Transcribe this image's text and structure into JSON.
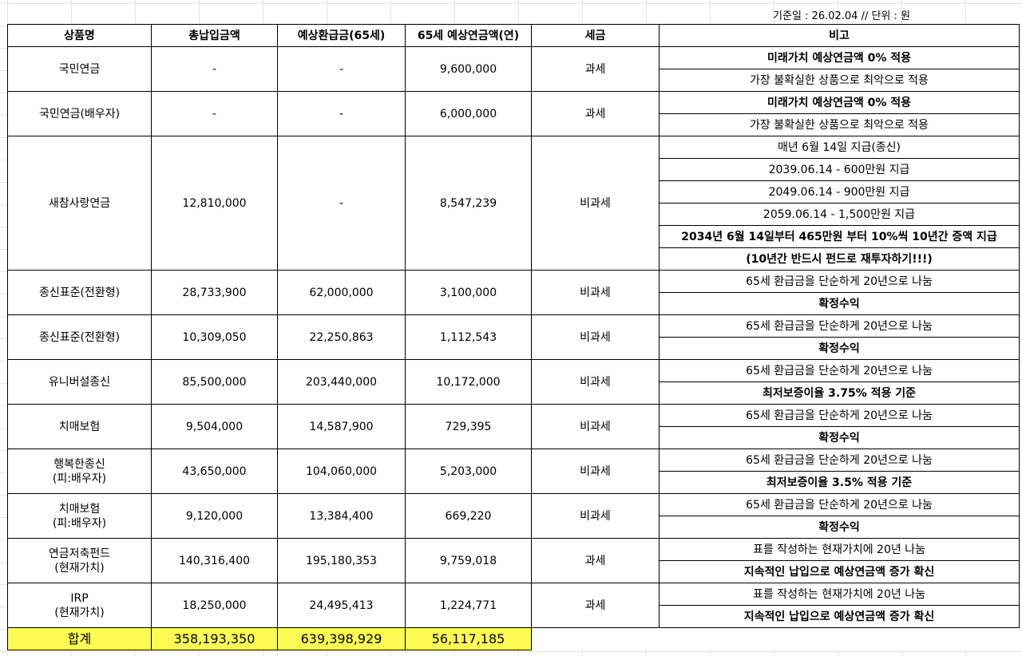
{
  "header": {
    "date_note": "기준일 : 26.02.04 // 단위 : 원"
  },
  "columns": [
    "상품명",
    "총납입금액",
    "예상환급금(65세)",
    "65세 예상연금액(연)",
    "세금",
    "비고"
  ],
  "rows": [
    {
      "name": [
        "국민연금"
      ],
      "paid": "-",
      "refund": "-",
      "annuity": "9,600,000",
      "tax": "과세",
      "notes": [
        {
          "text": "미래가치 예상연금액 0% 적용",
          "bold": true
        },
        {
          "text": "가장 불확실한 상품으로 최악으로 적용",
          "bold": false
        }
      ]
    },
    {
      "name": [
        "국민연금(배우자)"
      ],
      "paid": "-",
      "refund": "-",
      "annuity": "6,000,000",
      "tax": "과세",
      "notes": [
        {
          "text": "미래가치 예상연금액 0% 적용",
          "bold": true
        },
        {
          "text": "가장 불확실한 상품으로 최악으로 적용",
          "bold": false
        }
      ]
    },
    {
      "name": [
        "새참사랑연금"
      ],
      "paid": "12,810,000",
      "refund": "-",
      "annuity": "8,547,239",
      "tax": "비과세",
      "notes": [
        {
          "text": "매년 6월 14일 지급(종신)",
          "bold": false
        },
        {
          "text": "2039.06.14 - 600만원 지급",
          "bold": false
        },
        {
          "text": "2049.06.14 - 900만원 지급",
          "bold": false
        },
        {
          "text": "2059.06.14 - 1,500만원 지급",
          "bold": false
        },
        {
          "text": "2034년 6월 14일부터 465만원 부터 10%씩 10년간 증액 지급",
          "bold": true
        },
        {
          "text": "(10년간 반드시 펀드로 재투자하기!!!)",
          "bold": true
        }
      ]
    },
    {
      "name": [
        "종신표준(전환형)"
      ],
      "paid": "28,733,900",
      "refund": "62,000,000",
      "annuity": "3,100,000",
      "tax": "비과세",
      "notes": [
        {
          "text": "65세 환급금을 단순하게 20년으로 나눔",
          "bold": false
        },
        {
          "text": "확정수익",
          "bold": true
        }
      ]
    },
    {
      "name": [
        "종신표준(전환형)"
      ],
      "paid": "10,309,050",
      "refund": "22,250,863",
      "annuity": "1,112,543",
      "tax": "비과세",
      "notes": [
        {
          "text": "65세 환급금을 단순하게 20년으로 나눔",
          "bold": false
        },
        {
          "text": "확정수익",
          "bold": true
        }
      ]
    },
    {
      "name": [
        "유니버설종신"
      ],
      "paid": "85,500,000",
      "refund": "203,440,000",
      "annuity": "10,172,000",
      "tax": "비과세",
      "notes": [
        {
          "text": "65세 환급금을 단순하게 20년으로 나눔",
          "bold": false
        },
        {
          "text": "최저보증이율 3.75% 적용 기준",
          "bold": true
        }
      ]
    },
    {
      "name": [
        "치매보험"
      ],
      "paid": "9,504,000",
      "refund": "14,587,900",
      "annuity": "729,395",
      "tax": "비과세",
      "notes": [
        {
          "text": "65세 환급금을 단순하게 20년으로 나눔",
          "bold": false
        },
        {
          "text": "확정수익",
          "bold": true
        }
      ]
    },
    {
      "name": [
        "행복한종신",
        "(피:배우자)"
      ],
      "paid": "43,650,000",
      "refund": "104,060,000",
      "annuity": "5,203,000",
      "tax": "비과세",
      "notes": [
        {
          "text": "65세 환급금을 단순하게 20년으로 나눔",
          "bold": false
        },
        {
          "text": "최저보증이율 3.5% 적용 기준",
          "bold": true
        }
      ]
    },
    {
      "name": [
        "치매보험",
        "(피:배우자)"
      ],
      "paid": "9,120,000",
      "refund": "13,384,400",
      "annuity": "669,220",
      "tax": "비과세",
      "notes": [
        {
          "text": "65세 환급금을 단순하게 20년으로 나눔",
          "bold": false
        },
        {
          "text": "확정수익",
          "bold": true
        }
      ]
    },
    {
      "name": [
        "연금저축펀드",
        "(현재가치)"
      ],
      "paid": "140,316,400",
      "refund": "195,180,353",
      "annuity": "9,759,018",
      "tax": "과세",
      "notes": [
        {
          "text": "표를 작성하는 현재가치에 20년 나눔",
          "bold": false
        },
        {
          "text": "지속적인 납입으로 예상연금액 증가 확신",
          "bold": true
        }
      ]
    },
    {
      "name": [
        "IRP",
        "(현재가치)"
      ],
      "paid": "18,250,000",
      "refund": "24,495,413",
      "annuity": "1,224,771",
      "tax": "과세",
      "notes": [
        {
          "text": "표를 작성하는 현재가치에 20년 나눔",
          "bold": false
        },
        {
          "text": "지속적인 납입으로 예상연금액 증가 확신",
          "bold": true
        }
      ]
    }
  ],
  "total": {
    "label": "합계",
    "paid": "358,193,350",
    "refund": "639,398,929",
    "annuity": "56,117,185"
  }
}
